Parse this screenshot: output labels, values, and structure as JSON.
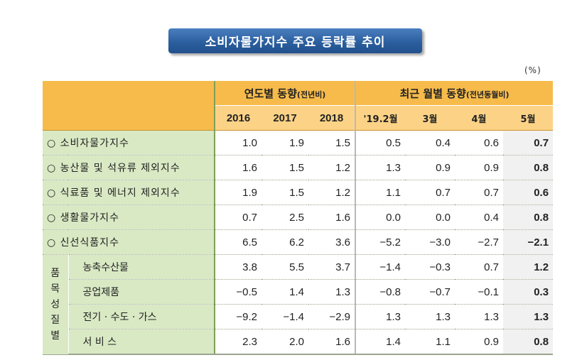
{
  "title": "소비자물가지수 주요 등락률 추이",
  "unit": "(%)",
  "header": {
    "group1": "연도별 동향",
    "group1_note": "(전년비)",
    "group2": "최근 월별 동향",
    "group2_note": "(전년동월비)",
    "columns": [
      "2016",
      "2017",
      "2018",
      "'19.2월",
      "3월",
      "4월",
      "5월"
    ]
  },
  "side_label": [
    "품",
    "목",
    "성",
    "질",
    "별"
  ],
  "rows": [
    {
      "label": "○ 소비자물가지수",
      "values": [
        "1.0",
        "1.9",
        "1.5",
        "0.5",
        "0.4",
        "0.6",
        "0.7"
      ]
    },
    {
      "label": "○ 농산물 및 석유류 제외지수",
      "values": [
        "1.6",
        "1.5",
        "1.2",
        "1.3",
        "0.9",
        "0.9",
        "0.8"
      ]
    },
    {
      "label": "○ 식료품 및 에너지 제외지수",
      "values": [
        "1.9",
        "1.5",
        "1.2",
        "1.1",
        "0.7",
        "0.7",
        "0.6"
      ]
    },
    {
      "label": "○ 생활물가지수",
      "values": [
        "0.7",
        "2.5",
        "1.6",
        "0.0",
        "0.0",
        "0.4",
        "0.8"
      ]
    },
    {
      "label": "○ 신선식품지수",
      "values": [
        "6.5",
        "6.2",
        "3.6",
        "−5.2",
        "−3.0",
        "−2.7",
        "−2.1"
      ]
    },
    {
      "label": "농축수산물",
      "values": [
        "3.8",
        "5.5",
        "3.7",
        "−1.4",
        "−0.3",
        "0.7",
        "1.2"
      ]
    },
    {
      "label": "공업제품",
      "values": [
        "−0.5",
        "1.4",
        "1.3",
        "−0.8",
        "−0.7",
        "−0.1",
        "0.3"
      ]
    },
    {
      "label": "전기 · 수도 · 가스",
      "values": [
        "−9.2",
        "−1.4",
        "−2.9",
        "1.3",
        "1.3",
        "1.3",
        "1.3"
      ]
    },
    {
      "label": "서 비 스",
      "values": [
        "2.3",
        "2.0",
        "1.6",
        "1.4",
        "1.1",
        "0.9",
        "0.8"
      ]
    }
  ]
}
